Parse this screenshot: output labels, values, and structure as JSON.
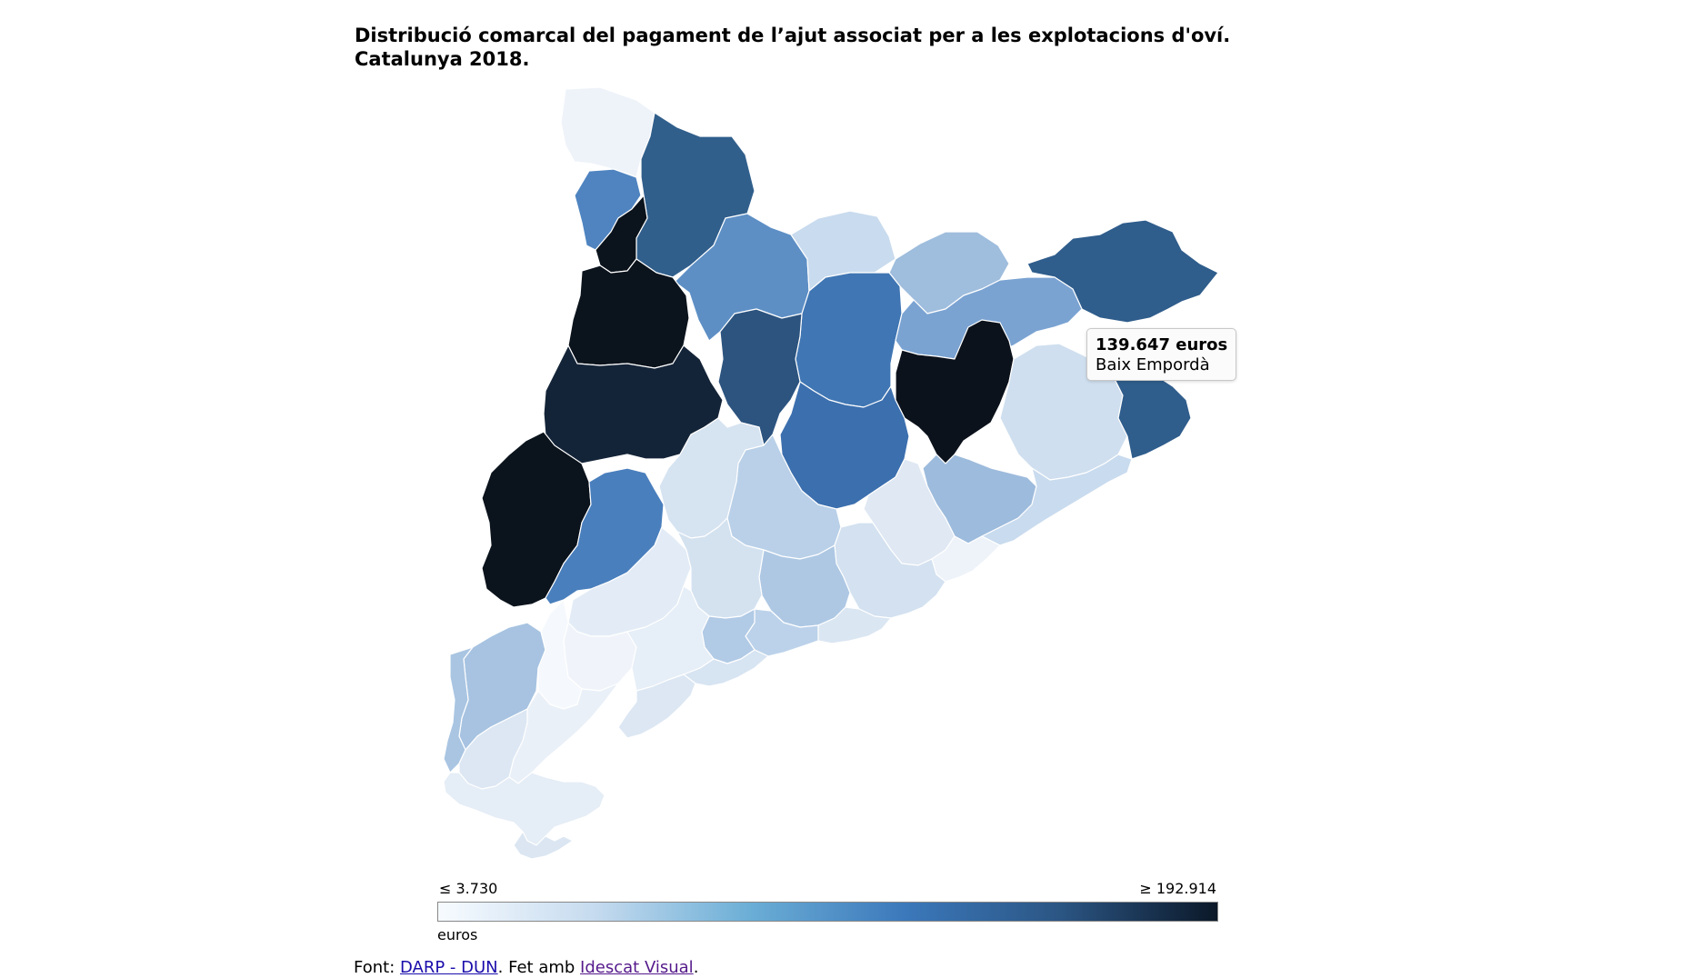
{
  "title": {
    "line1": "Distribució comarcal del pagament de l’ajut associat per a les explotacions d'oví.",
    "line2": "Catalunya 2018."
  },
  "tooltip": {
    "value": "139.647 euros",
    "name": "Baix Empordà"
  },
  "legend": {
    "min_label": "≤ 3.730",
    "max_label": "≥ 192.914",
    "unit": "euros",
    "scale_min": 3730,
    "scale_max": 192914,
    "colors": [
      "#f7fbff",
      "#c6dbef",
      "#6baed6",
      "#3b78bb",
      "#2b5583",
      "#0b1828"
    ]
  },
  "footer": {
    "prefix": "Font: ",
    "source_link": "DARP - DUN",
    "middle": ". Fet amb ",
    "tool_link": "Idescat Visual",
    "suffix": "."
  },
  "map": {
    "regions": [
      {
        "id": "r01",
        "fill": "#eef3f9"
      },
      {
        "id": "r02",
        "fill": "#315f8c"
      },
      {
        "id": "r03",
        "fill": "#4f84c0"
      },
      {
        "id": "r04",
        "fill": "#0b131c"
      },
      {
        "id": "r05",
        "fill": "#5d8fc5"
      },
      {
        "id": "r06",
        "fill": "#c9dbee"
      },
      {
        "id": "r07",
        "fill": "#9fbddd"
      },
      {
        "id": "r08",
        "fill": "#2f5d8c"
      },
      {
        "id": "r09",
        "fill": "#0b131c"
      },
      {
        "id": "r10",
        "fill": "#4076b3"
      },
      {
        "id": "r11",
        "fill": "#7aa3d2"
      },
      {
        "id": "r12",
        "fill": "#2d547f"
      },
      {
        "id": "r13",
        "fill": "#142438"
      },
      {
        "id": "r14",
        "fill": "#0c121b"
      },
      {
        "id": "r15",
        "fill": "#0b131c"
      },
      {
        "id": "r16",
        "fill": "#cfdfef"
      },
      {
        "id": "r17",
        "fill": "#2f5d8c"
      },
      {
        "id": "r18",
        "fill": "#3c6fae"
      },
      {
        "id": "r19",
        "fill": "#9dbbdc"
      },
      {
        "id": "r20",
        "fill": "#4a7fbd"
      },
      {
        "id": "r21",
        "fill": "#c9dbee"
      },
      {
        "id": "r22",
        "fill": "#b9d0e8"
      },
      {
        "id": "r23",
        "fill": "#d6e3f1"
      },
      {
        "id": "r24",
        "fill": "#e3ecf6"
      },
      {
        "id": "r25",
        "fill": "#dfe8f3"
      },
      {
        "id": "r26",
        "fill": "#eef3f9"
      },
      {
        "id": "r27",
        "fill": "#d3e1f0"
      },
      {
        "id": "r28",
        "fill": "#aec8e4"
      },
      {
        "id": "r29",
        "fill": "#dae6f2"
      },
      {
        "id": "r30",
        "fill": "#d4e2f0"
      },
      {
        "id": "r31",
        "fill": "#f0f4fa"
      },
      {
        "id": "r32",
        "fill": "#a7c3e1"
      },
      {
        "id": "r33",
        "fill": "#bcd2ea"
      },
      {
        "id": "r34",
        "fill": "#b1cae5"
      },
      {
        "id": "r35",
        "fill": "#e6eef7"
      },
      {
        "id": "r36",
        "fill": "#d7e4f2"
      },
      {
        "id": "r37",
        "fill": "#f5f8fc"
      },
      {
        "id": "r38",
        "fill": "#a9c5e2"
      },
      {
        "id": "r39",
        "fill": "#eaf0f8"
      },
      {
        "id": "r40",
        "fill": "#dce7f3"
      },
      {
        "id": "r41",
        "fill": "#e5edf6"
      },
      {
        "id": "r42",
        "fill": "#dbe6f2"
      },
      {
        "id": "r43",
        "fill": "#dce7f3"
      }
    ]
  }
}
